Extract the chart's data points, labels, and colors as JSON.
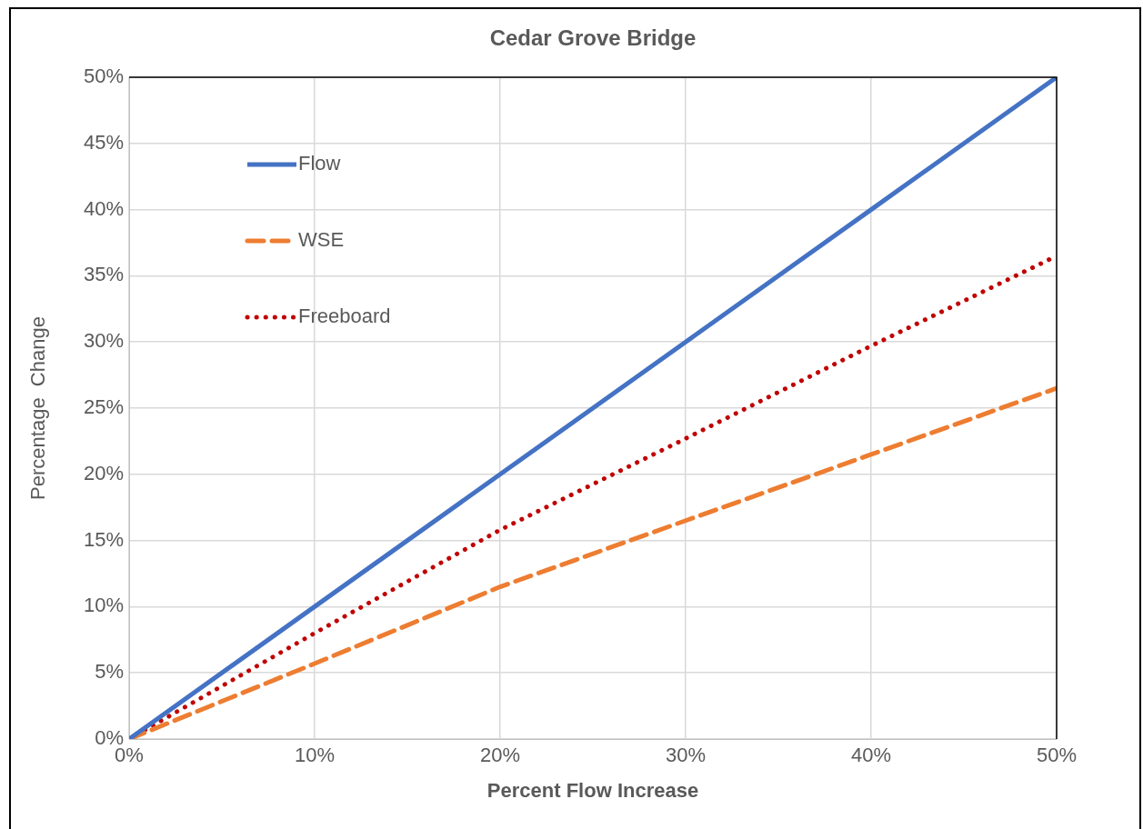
{
  "chart_data": {
    "type": "line",
    "title": "Cedar Grove Bridge",
    "xlabel": "Percent Flow Increase",
    "ylabel": "Percentage  Change",
    "x": [
      0,
      10,
      20,
      30,
      40,
      50
    ],
    "series": [
      {
        "name": "Flow",
        "color": "#4472c4",
        "line_style": "solid",
        "values": [
          0,
          10,
          20,
          30,
          40,
          50
        ]
      },
      {
        "name": "WSE",
        "color": "#ed7d31",
        "line_style": "dashed",
        "values": [
          0,
          5.7,
          11.5,
          16.5,
          21.5,
          26.5
        ]
      },
      {
        "name": "Freeboard",
        "color": "#c00000",
        "line_style": "dotted",
        "values": [
          0,
          8,
          15.8,
          22.7,
          29.7,
          36.5
        ]
      }
    ],
    "xlim": [
      0,
      50
    ],
    "ylim": [
      0,
      50
    ],
    "xticks": [
      {
        "value": 0,
        "label": "0%"
      },
      {
        "value": 10,
        "label": "10%"
      },
      {
        "value": 20,
        "label": "20%"
      },
      {
        "value": 30,
        "label": "30%"
      },
      {
        "value": 40,
        "label": "40%"
      },
      {
        "value": 50,
        "label": "50%"
      }
    ],
    "yticks": [
      {
        "value": 0,
        "label": "0%"
      },
      {
        "value": 5,
        "label": "5%"
      },
      {
        "value": 10,
        "label": "10%"
      },
      {
        "value": 15,
        "label": "15%"
      },
      {
        "value": 20,
        "label": "20%"
      },
      {
        "value": 25,
        "label": "25%"
      },
      {
        "value": 30,
        "label": "30%"
      },
      {
        "value": 35,
        "label": "35%"
      },
      {
        "value": 40,
        "label": "40%"
      },
      {
        "value": 45,
        "label": "45%"
      },
      {
        "value": 50,
        "label": "50%"
      }
    ],
    "grid": true,
    "legend": "top left",
    "marker": "none"
  }
}
